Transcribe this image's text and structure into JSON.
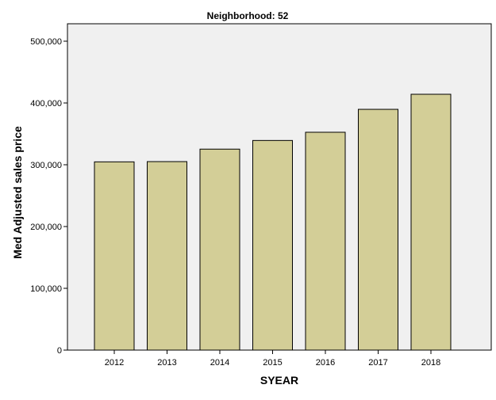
{
  "chart_data": {
    "type": "bar",
    "title": "Neighborhood: 52",
    "xlabel": "SYEAR",
    "ylabel": "Med Adjusted sales price",
    "categories": [
      "2012",
      "2013",
      "2014",
      "2015",
      "2016",
      "2017",
      "2018"
    ],
    "values": [
      304700,
      305100,
      325300,
      339300,
      352600,
      389700,
      414100
    ],
    "ylim": [
      0,
      500000
    ],
    "yticks": [
      0,
      100000,
      200000,
      300000,
      400000,
      500000
    ],
    "ytick_labels": [
      "0",
      "100,000",
      "200,000",
      "300,000",
      "400,000",
      "500,000"
    ],
    "grid": false,
    "colors": {
      "bar": "#d3ce97",
      "bar_border": "#000000",
      "plot_bg": "#f0f0f0"
    }
  }
}
